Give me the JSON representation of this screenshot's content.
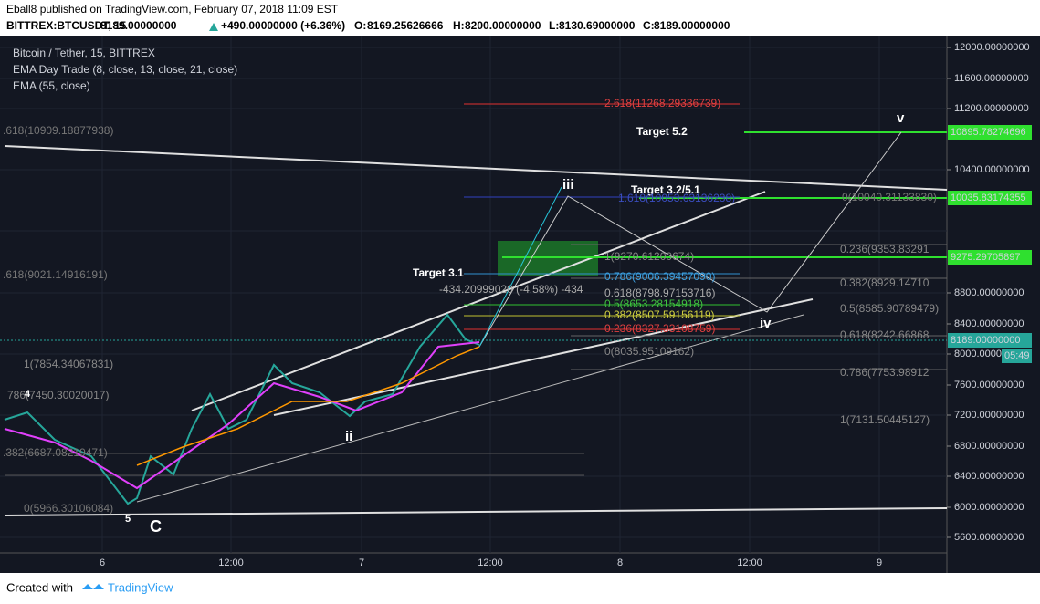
{
  "header": {
    "title": "Eball8 published on TradingView.com, February 07, 2018 11:09 EST"
  },
  "symbol_bar": {
    "symbol": "BITTREX:BTCUSDT, 15",
    "last": "8189.00000000",
    "change": "+490.00000000 (+6.36%)",
    "o_label": "O:",
    "o": "8169.25626666",
    "h_label": "H:",
    "h": "8200.00000000",
    "l_label": "L:",
    "l": "8130.69000000",
    "c_label": "C:",
    "c": "8189.00000000"
  },
  "legend": [
    "Bitcoin / Tether, 15, BITTREX",
    "EMA Day Trade (8, close, 13, close, 21, close)",
    "EMA (55, close)"
  ],
  "annotations": [
    "2.618(11268.29336739)",
    "Target 5.2",
    "v",
    ".618(10909.18877938)",
    "iii",
    "Target 3.2/5.1",
    "1.618(10053.63136238)",
    "0(10040.31133830)",
    "1(9270.61200674)",
    "0.236(9353.83291",
    "Target 3.1",
    ".618(9021.14916191)",
    "0.786(9006.39457090)",
    "0.382(8929.14710",
    "-434.20999020 (-4.58%) -434",
    "0.618(8798.97153716)",
    "0.5(8653.28154918)",
    "0.5(8585.90789479)",
    "0.382(8507.59156119)",
    "iv",
    "0.236(8327.33108759)",
    "0.618(8242.66868",
    "0(8035.95109162)",
    "1(7854.34067831)",
    "0.786(7753.98912",
    "786(7450.30020017)",
    "ii",
    "1(7131.50445127)",
    ".382(6687.08219471)",
    "0(5966.30106084)",
    "C",
    "5",
    "4"
  ],
  "price_axis": [
    "12000.00000000",
    "11600.00000000",
    "11200.00000000",
    "10400.00000000",
    "8800.00000000",
    "8400.00000000",
    "8000.00000000",
    "7600.00000000",
    "7200.00000000",
    "6800.00000000",
    "6400.00000000",
    "6000.00000000",
    "5600.00000000"
  ],
  "price_tags": [
    "10895.78274696",
    "10035.83174355",
    "9275.29705897",
    "8189.00000000",
    "05:49"
  ],
  "time_axis": [
    "6",
    "12:00",
    "7",
    "12:00",
    "8",
    "12:00",
    "9"
  ],
  "footer": {
    "created": "Created with",
    "brand": "TradingView"
  }
}
